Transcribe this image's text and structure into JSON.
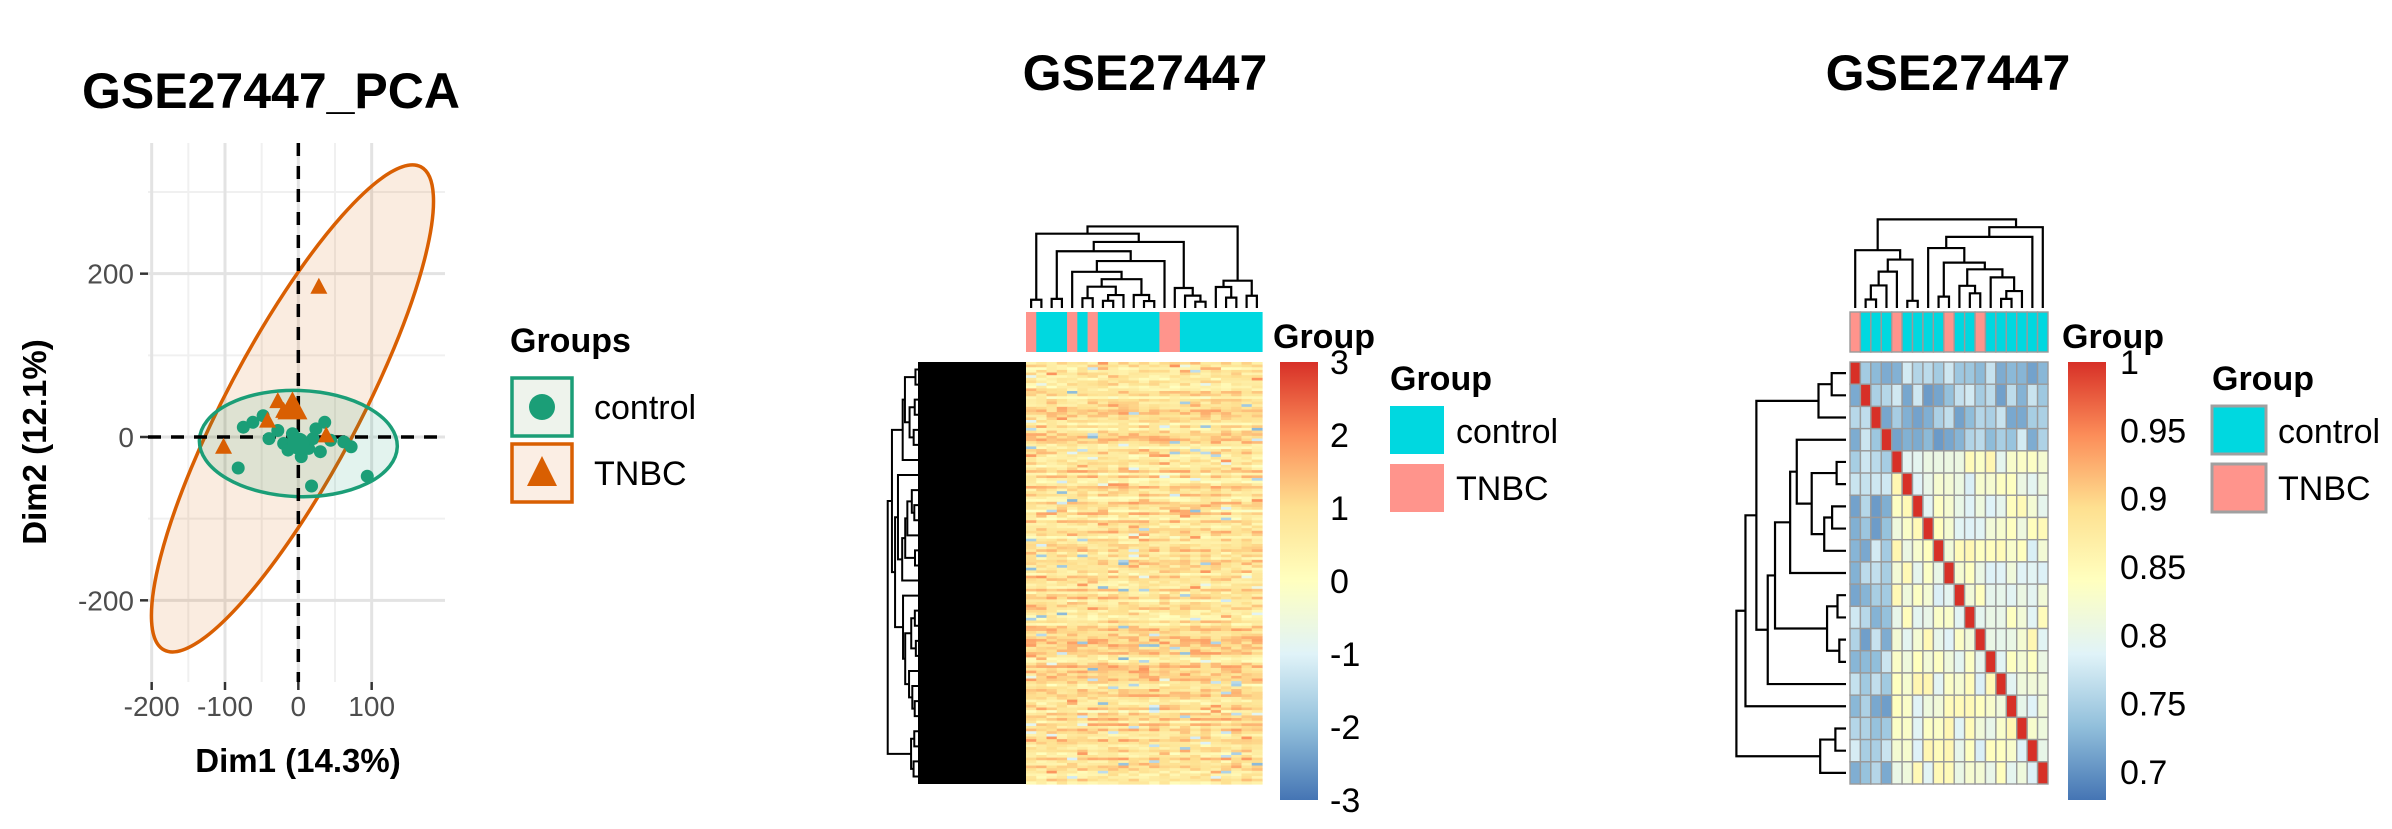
{
  "chart_data": [
    {
      "type": "scatter",
      "title": "GSE27447_PCA",
      "xlabel": "Dim1 (14.3%)",
      "ylabel": "Dim2 (12.1%)",
      "xlim": [
        -205,
        200
      ],
      "ylim": [
        -300,
        360
      ],
      "xticks": [
        -200,
        -100,
        0,
        100
      ],
      "xtick_labels": [
        "-200",
        "-100",
        "0",
        "100"
      ],
      "yticks": [
        -200,
        0,
        200
      ],
      "ytick_labels": [
        "-200",
        "0",
        "200"
      ],
      "grid": true,
      "legend": {
        "title": "Groups",
        "position": "right"
      },
      "reference_lines": {
        "x": 0,
        "y": 0
      },
      "series": [
        {
          "name": "control",
          "marker": "circle",
          "color": "#1b9e77",
          "points": [
            [
              -82,
              -38
            ],
            [
              -75,
              12
            ],
            [
              -62,
              18
            ],
            [
              -48,
              26
            ],
            [
              -40,
              -2
            ],
            [
              -28,
              8
            ],
            [
              -20,
              -8
            ],
            [
              -14,
              -16
            ],
            [
              -8,
              4
            ],
            [
              -4,
              -12
            ],
            [
              4,
              -24
            ],
            [
              10,
              -8
            ],
            [
              14,
              -14
            ],
            [
              20,
              -2
            ],
            [
              24,
              10
            ],
            [
              30,
              -18
            ],
            [
              36,
              18
            ],
            [
              44,
              -4
            ],
            [
              62,
              -6
            ],
            [
              72,
              -12
            ],
            [
              94,
              -48
            ],
            [
              18,
              -60
            ]
          ]
        },
        {
          "name": "TNBC",
          "marker": "triangle",
          "color": "#d95f02",
          "points": [
            [
              -102,
              -12
            ],
            [
              -42,
              20
            ],
            [
              -28,
              44
            ],
            [
              -20,
              32
            ],
            [
              28,
              184
            ],
            [
              38,
              2
            ]
          ]
        }
      ],
      "ellipses": [
        {
          "group": "control",
          "center": [
            0,
            -8
          ],
          "semi_axes": [
            135,
            65
          ],
          "angle_deg": 2,
          "color": "#1b9e77"
        },
        {
          "group": "TNBC",
          "center": [
            -8,
            35
          ],
          "semi_axes": [
            90,
            335
          ],
          "angle_deg": 28,
          "color": "#d95f02"
        }
      ]
    },
    {
      "type": "heatmap",
      "title": "GSE27447",
      "annotation_title": "Group",
      "legend": {
        "title": "Group",
        "position": "right"
      },
      "groups": [
        {
          "name": "control",
          "color": "#00d8e0"
        },
        {
          "name": "TNBC",
          "color": "#ff948c"
        }
      ],
      "column_groups": [
        "TNBC",
        "control",
        "control",
        "control",
        "TNBC",
        "control",
        "TNBC",
        "control",
        "control",
        "control",
        "control",
        "control",
        "control",
        "TNBC",
        "TNBC",
        "control",
        "control",
        "control",
        "control",
        "control",
        "control",
        "control",
        "control"
      ],
      "n_rows": 160,
      "n_columns": 23,
      "value_range": [
        -3,
        3
      ],
      "colorbar_ticks": [
        3,
        2,
        1,
        0,
        -1,
        -2,
        -3
      ],
      "colorbar_labels": [
        "3",
        "2",
        "1",
        "0",
        "-1",
        "-2",
        "-3"
      ]
    },
    {
      "type": "heatmap",
      "title": "GSE27447",
      "annotation_title": "Group",
      "legend": {
        "title": "Group",
        "position": "right"
      },
      "groups": [
        {
          "name": "control",
          "color": "#00d8e0"
        },
        {
          "name": "TNBC",
          "color": "#ff948c"
        }
      ],
      "column_groups": [
        "TNBC",
        "control",
        "control",
        "control",
        "TNBC",
        "control",
        "control",
        "control",
        "control",
        "TNBC",
        "control",
        "control",
        "TNBC",
        "control",
        "control",
        "control",
        "control",
        "control",
        "control"
      ],
      "n_samples": 19,
      "value_range": [
        0.7,
        1.0
      ],
      "colorbar_ticks": [
        1,
        0.95,
        0.9,
        0.85,
        0.8,
        0.75,
        0.7
      ],
      "colorbar_labels": [
        "1",
        "0.95",
        "0.9",
        "0.85",
        "0.8",
        "0.75",
        "0.7"
      ]
    }
  ]
}
